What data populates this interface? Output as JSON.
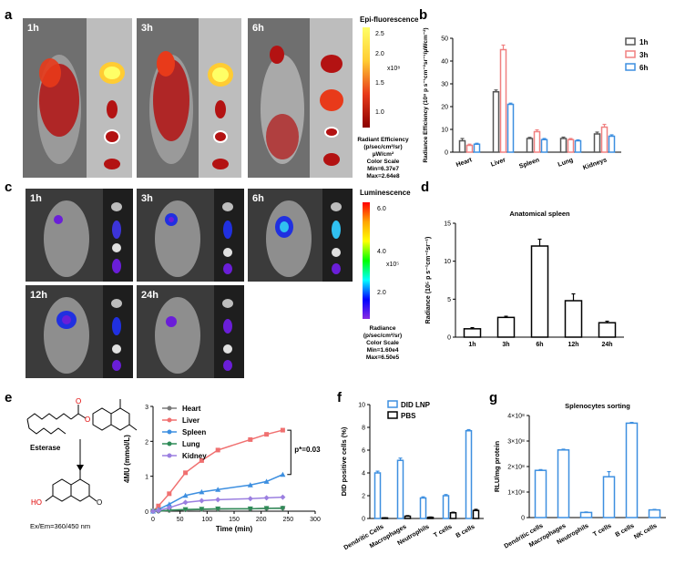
{
  "panel_letters": {
    "a": "a",
    "b": "b",
    "c": "c",
    "d": "d",
    "e": "e",
    "f": "f",
    "g": "g"
  },
  "panel_a": {
    "time_labels": [
      "1h",
      "3h",
      "6h"
    ],
    "scale_title": "Epi-fluorescence",
    "scale_ticks": [
      "2.5",
      "2.0",
      "1.5",
      "1.0"
    ],
    "scale_exponent": "x10⁸",
    "scale_caption": [
      "Radiant Efficiency",
      "(p/sec/cm²/sr)",
      "µW/cm²",
      "Color Scale",
      "Min=6.37e7",
      "Max=2.64e8"
    ],
    "colors": {
      "low": "#8b0000",
      "mid": "#e83a1a",
      "high": "#ffff66"
    }
  },
  "panel_c": {
    "time_labels": [
      "1h",
      "3h",
      "6h",
      "12h",
      "24h"
    ],
    "scale_title": "Luminescence",
    "scale_ticks": [
      "6.0",
      "4.0",
      "2.0"
    ],
    "scale_exponent": "x10⁵",
    "scale_caption": [
      "Radiance",
      "(p/sec/cm²/sr)",
      "Color Scale",
      "Min=1.60e4",
      "Max=6.50e5"
    ]
  },
  "panel_e": {
    "compound_labels": [
      "Esterase",
      "Ex/Em=360/450 nm"
    ],
    "atom_labels": [
      "O",
      "O",
      "HO",
      "O"
    ]
  },
  "chart_data": [
    {
      "id": "b",
      "type": "bar",
      "categories": [
        "Heart",
        "Liver",
        "Spleen",
        "Lung",
        "Kidneys"
      ],
      "series": [
        {
          "name": "1h",
          "color": "#555555",
          "values": [
            5,
            26.5,
            6,
            6,
            8
          ],
          "errors": [
            1,
            0.8,
            0.5,
            0.6,
            0.8
          ]
        },
        {
          "name": "3h",
          "color": "#f08080",
          "values": [
            3,
            45,
            9,
            5.5,
            11
          ],
          "errors": [
            0.5,
            2,
            0.8,
            0.5,
            1.2
          ]
        },
        {
          "name": "6h",
          "color": "#3d8fe0",
          "values": [
            3.5,
            21,
            5.5,
            5,
            7
          ],
          "errors": [
            0.4,
            0.5,
            0.5,
            0.4,
            0.6
          ]
        }
      ],
      "ylabel": "Radiance Efficiency (10⁸ p s⁻¹cm⁻²sr⁻¹/µWcm⁻²)",
      "ylim": [
        0,
        50
      ],
      "yticks": [
        0,
        10,
        20,
        30,
        40,
        50
      ]
    },
    {
      "id": "d",
      "type": "bar",
      "title": "Anatomical spleen",
      "categories": [
        "1h",
        "3h",
        "6h",
        "12h",
        "24h"
      ],
      "values": [
        1.1,
        2.6,
        12,
        4.8,
        1.9
      ],
      "errors": [
        0.15,
        0.15,
        0.9,
        0.9,
        0.2
      ],
      "ylabel": "Radiance (10⁵ p s⁻¹cm⁻²sr⁻¹)",
      "ylim": [
        0,
        15
      ],
      "yticks": [
        0,
        5,
        10,
        15
      ]
    },
    {
      "id": "e",
      "type": "line",
      "x": [
        0,
        10,
        30,
        60,
        90,
        120,
        180,
        210,
        240
      ],
      "series": [
        {
          "name": "Heart",
          "color": "#7a7a7a",
          "marker": "circle",
          "values": [
            0,
            0,
            0.02,
            0.04,
            0.05,
            0.06,
            0.07,
            0.08,
            0.09
          ]
        },
        {
          "name": "Liver",
          "color": "#f07070",
          "marker": "square",
          "values": [
            0,
            0.15,
            0.5,
            1.1,
            1.45,
            1.75,
            2.05,
            2.2,
            2.32
          ]
        },
        {
          "name": "Spleen",
          "color": "#3d8fe0",
          "marker": "triangle",
          "values": [
            0,
            0.05,
            0.2,
            0.45,
            0.55,
            0.62,
            0.75,
            0.85,
            1.05
          ]
        },
        {
          "name": "Lung",
          "color": "#2e8b57",
          "marker": "down",
          "values": [
            0,
            0,
            0.03,
            0.05,
            0.06,
            0.07,
            0.07,
            0.08,
            0.08
          ]
        },
        {
          "name": "Kidney",
          "color": "#9b7fe0",
          "marker": "diamond",
          "values": [
            0,
            0.02,
            0.1,
            0.25,
            0.3,
            0.33,
            0.36,
            0.38,
            0.4
          ]
        }
      ],
      "xlabel": "Time (min)",
      "ylabel": "4MU (mmol/L)",
      "xlim": [
        0,
        300
      ],
      "ylim": [
        0,
        3
      ],
      "xticks": [
        0,
        50,
        100,
        150,
        200,
        250,
        300
      ],
      "yticks": [
        0,
        1,
        2,
        3
      ],
      "annotation": "p*=0.03"
    },
    {
      "id": "f",
      "type": "bar",
      "categories": [
        "Dendritic Cells",
        "Macrophages",
        "Neutrophils",
        "T cells",
        "B cells"
      ],
      "series": [
        {
          "name": "DID LNP",
          "color": "#3d8fe0",
          "values": [
            4.0,
            5.1,
            1.8,
            2.0,
            7.7
          ],
          "errors": [
            0.15,
            0.2,
            0.1,
            0.1,
            0.1
          ]
        },
        {
          "name": "PBS",
          "color": "#000000",
          "values": [
            0.05,
            0.2,
            0.1,
            0.5,
            0.7
          ],
          "errors": [
            0.02,
            0.05,
            0.03,
            0.05,
            0.1
          ]
        }
      ],
      "ylabel": "DID positive cells (%)",
      "ylim": [
        0,
        10
      ],
      "yticks": [
        0,
        2,
        4,
        6,
        8,
        10
      ]
    },
    {
      "id": "g",
      "type": "bar",
      "title": "Splenocytes sorting",
      "categories": [
        "Dendritic cells",
        "Macrophages",
        "Neutrophils",
        "T cells",
        "B cells",
        "NK cells"
      ],
      "values": [
        1.85,
        2.65,
        0.2,
        1.6,
        3.7,
        0.3
      ],
      "errors": [
        0.03,
        0.03,
        0.02,
        0.2,
        0.03,
        0.02
      ],
      "ylabel": "RLU/mg protein",
      "ylim": [
        0,
        4
      ],
      "yticks": [
        "0",
        "1×10⁸",
        "2×10⁸",
        "3×10⁸",
        "4×10⁸"
      ]
    }
  ]
}
